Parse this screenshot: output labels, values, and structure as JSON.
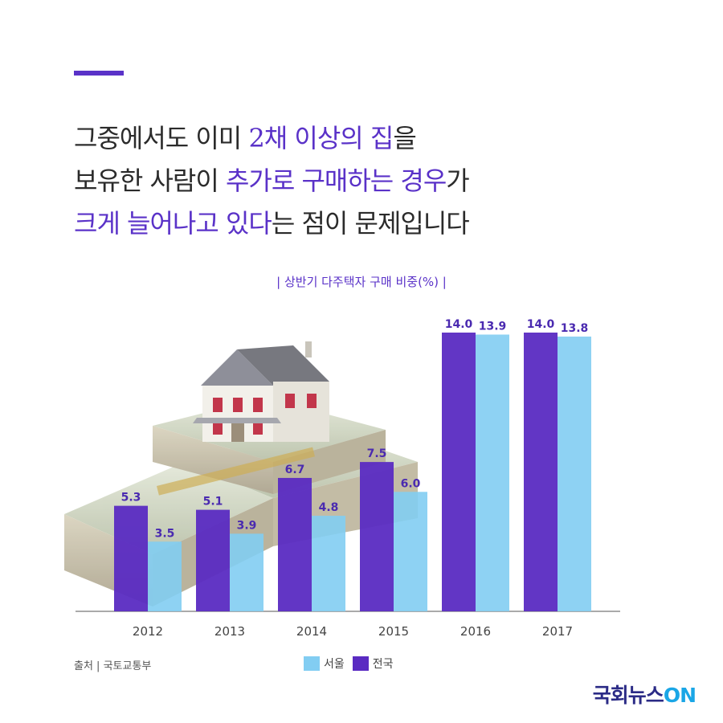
{
  "headline": {
    "line1": [
      {
        "text": "그중에서도 이미 ",
        "hl": false
      },
      {
        "text": "2채 이상의 집",
        "hl": true
      },
      {
        "text": "을",
        "hl": false
      }
    ],
    "line2": [
      {
        "text": "보유한 사람이 ",
        "hl": false
      },
      {
        "text": "추가로 구매하는 경우",
        "hl": true
      },
      {
        "text": "가",
        "hl": false
      }
    ],
    "line3": [
      {
        "text": "크게 늘어나고 있다",
        "hl": true
      },
      {
        "text": "는 점이 문제입니다",
        "hl": false
      }
    ]
  },
  "source": "출처 | 국토교통부",
  "brand": {
    "main": "국회뉴스",
    "suffix": "ON"
  },
  "colors": {
    "accent": "#5a32c8",
    "national": "#5a2bc2",
    "seoul": "#82cdf2"
  },
  "illustration": {
    "name": "house-on-money-stack"
  },
  "chart_data": {
    "type": "bar",
    "title": "| 상반기 다주택자 구매 비중(%) |",
    "categories": [
      "2012",
      "2013",
      "2014",
      "2015",
      "2016",
      "2017"
    ],
    "series": [
      {
        "name": "전국",
        "values": [
          5.3,
          5.1,
          6.7,
          7.5,
          14.0,
          14.0
        ],
        "color": "#5a2bc2"
      },
      {
        "name": "서울",
        "values": [
          3.5,
          3.9,
          4.8,
          6.0,
          13.9,
          13.8
        ],
        "color": "#82cdf2"
      }
    ],
    "value_labels": [
      [
        "5.3",
        "5.1",
        "6.7",
        "7.5",
        "14.0",
        "14.0"
      ],
      [
        "3.5",
        "3.9",
        "4.8",
        "6.0",
        "13.9",
        "13.8"
      ]
    ],
    "legend": [
      {
        "name": "서울",
        "color": "#82cdf2"
      },
      {
        "name": "전국",
        "color": "#5a2bc2"
      }
    ],
    "legend_position": "bottom",
    "ylim": [
      0,
      14.0
    ],
    "grid": false
  }
}
